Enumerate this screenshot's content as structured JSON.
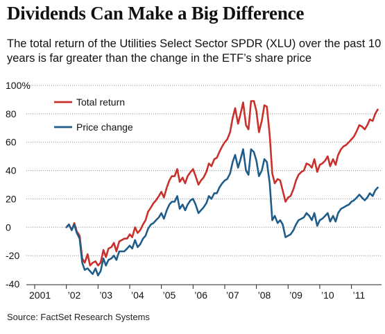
{
  "chart_data": {
    "type": "line",
    "title": "Dividends Can Make a Big Difference",
    "subtitle": "The total return of the Utilities Select Sector SPDR (XLU) over the past 10 years is far greater than the change in the ETF’s share price",
    "source": "Source: FactSet Research Systems",
    "xlabel": "",
    "ylabel": "",
    "xlim": [
      2001,
      2011.95
    ],
    "ylim": [
      -40,
      100
    ],
    "y_ticks": [
      {
        "value": 100,
        "label": "100%"
      },
      {
        "value": 80,
        "label": "80"
      },
      {
        "value": 60,
        "label": "60"
      },
      {
        "value": 40,
        "label": "40"
      },
      {
        "value": 20,
        "label": "20"
      },
      {
        "value": 0,
        "label": "0"
      },
      {
        "value": -20,
        "label": "-20"
      },
      {
        "value": -40,
        "label": "-40"
      }
    ],
    "x_ticks": [
      {
        "value": 2001,
        "label": "2001"
      },
      {
        "value": 2002,
        "label": "’02"
      },
      {
        "value": 2003,
        "label": "’03"
      },
      {
        "value": 2004,
        "label": "’04"
      },
      {
        "value": 2005,
        "label": "’05"
      },
      {
        "value": 2006,
        "label": "’06"
      },
      {
        "value": 2007,
        "label": "’07"
      },
      {
        "value": 2008,
        "label": "’08"
      },
      {
        "value": 2009,
        "label": "’09"
      },
      {
        "value": 2010,
        "label": "’10"
      },
      {
        "value": 2011,
        "label": "’11"
      }
    ],
    "grid": "horizontal dotted",
    "legend_position": "top-left",
    "series": [
      {
        "name": "Total return",
        "color": "#c9302c",
        "x": [
          2002.0,
          2002.08,
          2002.17,
          2002.25,
          2002.33,
          2002.42,
          2002.5,
          2002.58,
          2002.67,
          2002.75,
          2002.83,
          2002.92,
          2003.0,
          2003.08,
          2003.17,
          2003.25,
          2003.33,
          2003.42,
          2003.5,
          2003.58,
          2003.67,
          2003.75,
          2003.83,
          2003.92,
          2004.0,
          2004.08,
          2004.17,
          2004.25,
          2004.33,
          2004.42,
          2004.5,
          2004.58,
          2004.67,
          2004.75,
          2004.83,
          2004.92,
          2005.0,
          2005.08,
          2005.17,
          2005.25,
          2005.33,
          2005.42,
          2005.5,
          2005.58,
          2005.67,
          2005.75,
          2005.83,
          2005.92,
          2006.0,
          2006.08,
          2006.17,
          2006.25,
          2006.33,
          2006.42,
          2006.5,
          2006.58,
          2006.67,
          2006.75,
          2006.83,
          2006.92,
          2007.0,
          2007.08,
          2007.17,
          2007.25,
          2007.33,
          2007.42,
          2007.5,
          2007.58,
          2007.67,
          2007.75,
          2007.83,
          2007.92,
          2008.0,
          2008.08,
          2008.17,
          2008.25,
          2008.33,
          2008.42,
          2008.5,
          2008.58,
          2008.67,
          2008.75,
          2008.83,
          2008.92,
          2009.0,
          2009.08,
          2009.17,
          2009.25,
          2009.33,
          2009.42,
          2009.5,
          2009.58,
          2009.67,
          2009.75,
          2009.83,
          2009.92,
          2010.0,
          2010.08,
          2010.17,
          2010.25,
          2010.33,
          2010.42,
          2010.5,
          2010.58,
          2010.67,
          2010.75,
          2010.83,
          2010.92,
          2011.0,
          2011.08,
          2011.17,
          2011.25,
          2011.33,
          2011.42,
          2011.5,
          2011.58,
          2011.67,
          2011.75,
          2011.83
        ],
        "values": [
          0,
          2,
          -2,
          3,
          -3,
          -6,
          -22,
          -25,
          -19,
          -27,
          -25,
          -24,
          -27,
          -25,
          -16,
          -21,
          -15,
          -14,
          -11,
          -17,
          -10,
          -9,
          -8,
          -8,
          -5,
          -7,
          0,
          -4,
          -2,
          2,
          5,
          11,
          14,
          17,
          19,
          22,
          25,
          21,
          28,
          33,
          36,
          36,
          41,
          32,
          35,
          31,
          36,
          39,
          41,
          36,
          30,
          33,
          35,
          39,
          45,
          43,
          48,
          49,
          53,
          57,
          60,
          62,
          67,
          77,
          84,
          73,
          80,
          88,
          72,
          69,
          89,
          89,
          82,
          67,
          75,
          86,
          85,
          65,
          38,
          31,
          34,
          33,
          26,
          18,
          21,
          22,
          27,
          33,
          37,
          39,
          40,
          45,
          44,
          42,
          48,
          39,
          44,
          45,
          47,
          50,
          43,
          48,
          44,
          51,
          55,
          57,
          58,
          60,
          62,
          64,
          68,
          72,
          71,
          69,
          72,
          76,
          75,
          80,
          83
        ]
      },
      {
        "name": "Price change",
        "color": "#1f5c8a",
        "x": [
          2002.0,
          2002.08,
          2002.17,
          2002.25,
          2002.33,
          2002.42,
          2002.5,
          2002.58,
          2002.67,
          2002.75,
          2002.83,
          2002.92,
          2003.0,
          2003.08,
          2003.17,
          2003.25,
          2003.33,
          2003.42,
          2003.5,
          2003.58,
          2003.67,
          2003.75,
          2003.83,
          2003.92,
          2004.0,
          2004.08,
          2004.17,
          2004.25,
          2004.33,
          2004.42,
          2004.5,
          2004.58,
          2004.67,
          2004.75,
          2004.83,
          2004.92,
          2005.0,
          2005.08,
          2005.17,
          2005.25,
          2005.33,
          2005.42,
          2005.5,
          2005.58,
          2005.67,
          2005.75,
          2005.83,
          2005.92,
          2006.0,
          2006.08,
          2006.17,
          2006.25,
          2006.33,
          2006.42,
          2006.5,
          2006.58,
          2006.67,
          2006.75,
          2006.83,
          2006.92,
          2007.0,
          2007.08,
          2007.17,
          2007.25,
          2007.33,
          2007.42,
          2007.5,
          2007.58,
          2007.67,
          2007.75,
          2007.83,
          2007.92,
          2008.0,
          2008.08,
          2008.17,
          2008.25,
          2008.33,
          2008.42,
          2008.5,
          2008.58,
          2008.67,
          2008.75,
          2008.83,
          2008.92,
          2009.0,
          2009.08,
          2009.17,
          2009.25,
          2009.33,
          2009.42,
          2009.5,
          2009.58,
          2009.67,
          2009.75,
          2009.83,
          2009.92,
          2010.0,
          2010.08,
          2010.17,
          2010.25,
          2010.33,
          2010.42,
          2010.5,
          2010.58,
          2010.67,
          2010.75,
          2010.83,
          2010.92,
          2011.0,
          2011.08,
          2011.17,
          2011.25,
          2011.33,
          2011.42,
          2011.5,
          2011.58,
          2011.67,
          2011.75,
          2011.83
        ],
        "values": [
          0,
          2,
          -2,
          2,
          -4,
          -8,
          -25,
          -30,
          -29,
          -31,
          -33,
          -29,
          -34,
          -31,
          -22,
          -27,
          -23,
          -22,
          -20,
          -23,
          -17,
          -17,
          -17,
          -15,
          -13,
          -15,
          -9,
          -14,
          -12,
          -8,
          -6,
          -1,
          2,
          3,
          5,
          7,
          10,
          6,
          12,
          16,
          18,
          18,
          22,
          13,
          16,
          12,
          16,
          19,
          20,
          16,
          10,
          12,
          14,
          17,
          22,
          20,
          24,
          24,
          28,
          31,
          33,
          34,
          38,
          46,
          51,
          42,
          48,
          55,
          40,
          37,
          55,
          53,
          47,
          36,
          40,
          48,
          46,
          31,
          5,
          8,
          3,
          5,
          2,
          -7,
          -6,
          -5,
          -2,
          2,
          5,
          6,
          7,
          10,
          8,
          5,
          10,
          1,
          5,
          6,
          8,
          10,
          4,
          8,
          4,
          10,
          13,
          14,
          15,
          16,
          18,
          19,
          21,
          23,
          21,
          19,
          21,
          24,
          22,
          26,
          28
        ]
      }
    ]
  }
}
